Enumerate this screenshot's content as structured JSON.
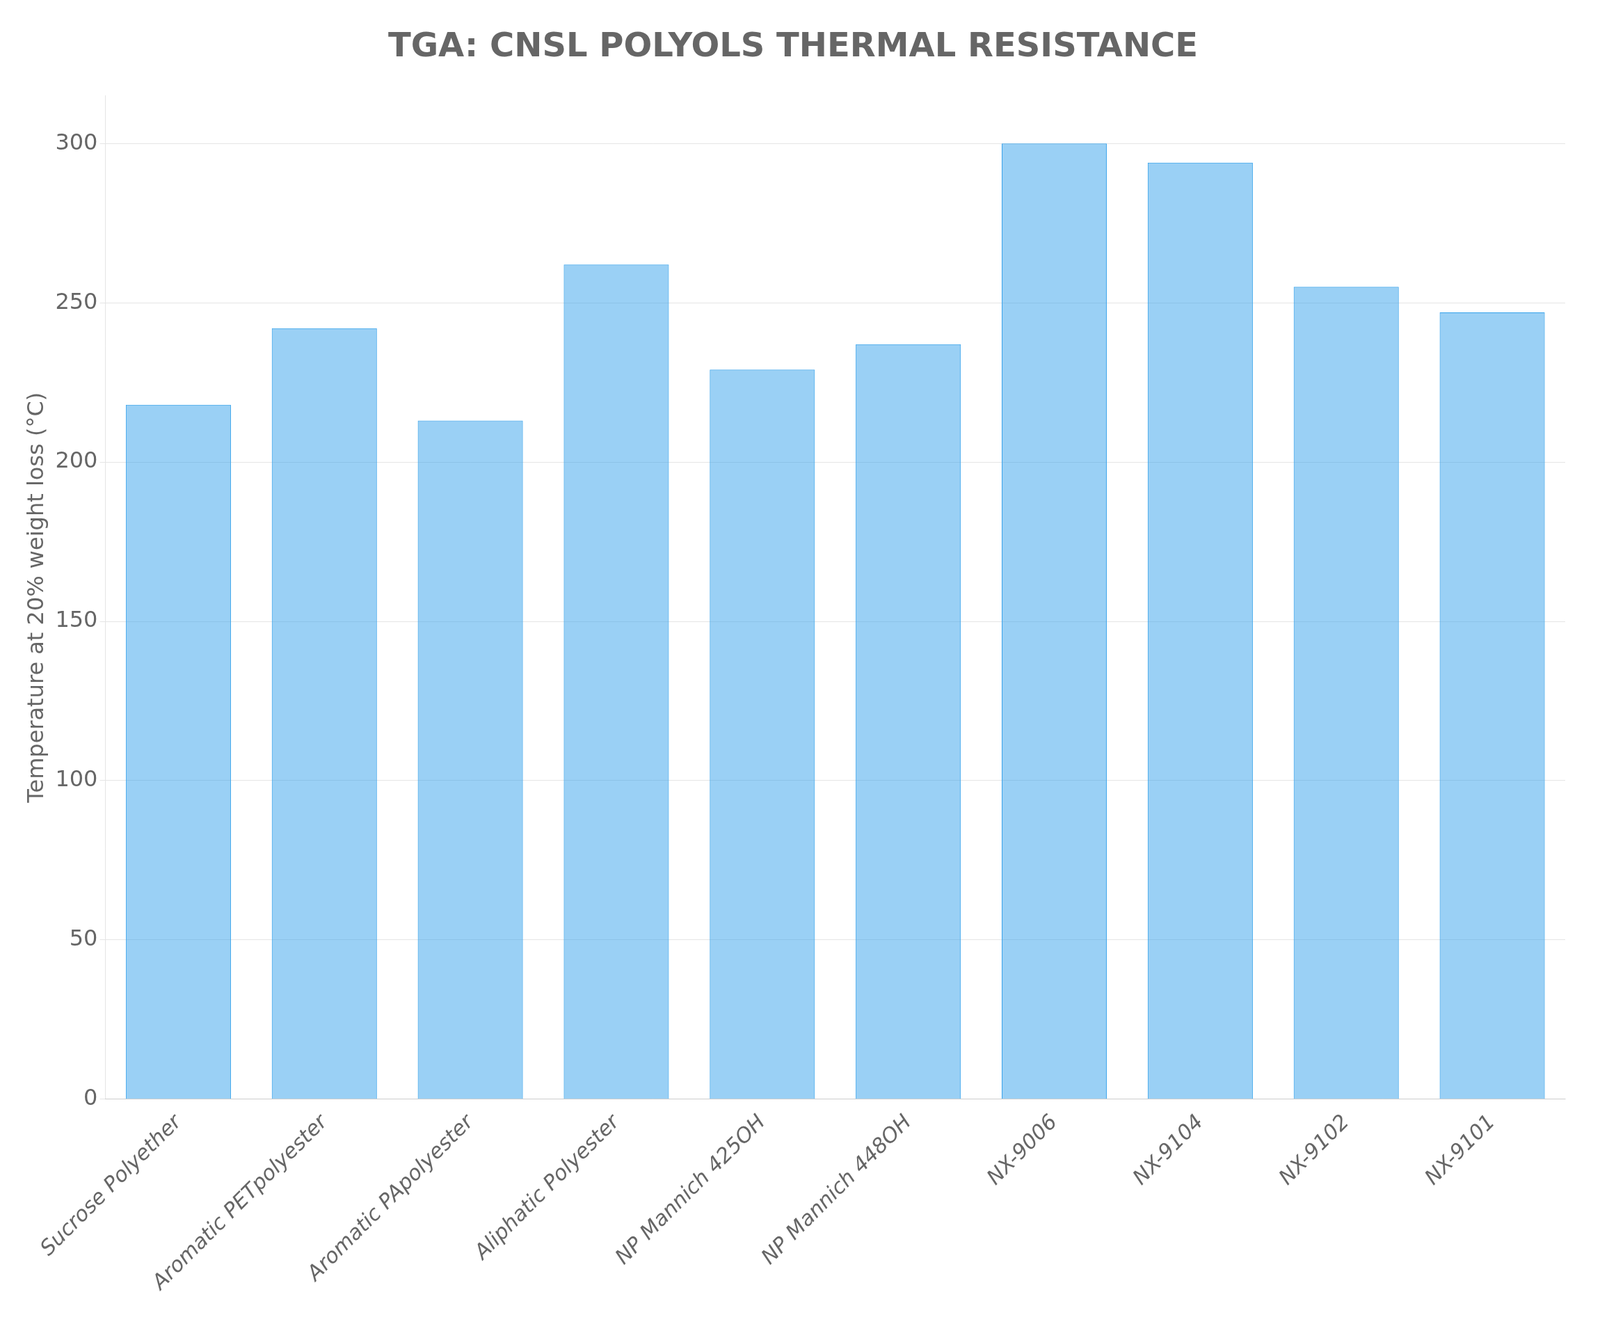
{
  "chart_data": {
    "type": "bar",
    "title": "TGA: CNSL POLYOLS THERMAL RESISTANCE",
    "ylabel": "Temperature at 20% weight loss (°C)",
    "categories": [
      "Sucrose Polyether",
      "Aromatic PETpolyester",
      "Aromatic PApolyester",
      "Aliphatic Polyester",
      "NP Mannich 425OH",
      "NP Mannich 448OH",
      "NX-9006",
      "NX-9104",
      "NX-9102",
      "NX-9101"
    ],
    "values": [
      218,
      242,
      213,
      262,
      229,
      237,
      300,
      294,
      255,
      247
    ],
    "ylim": [
      0,
      315
    ],
    "yticks": [
      0,
      50,
      100,
      150,
      200,
      250,
      300
    ],
    "grid": true
  }
}
